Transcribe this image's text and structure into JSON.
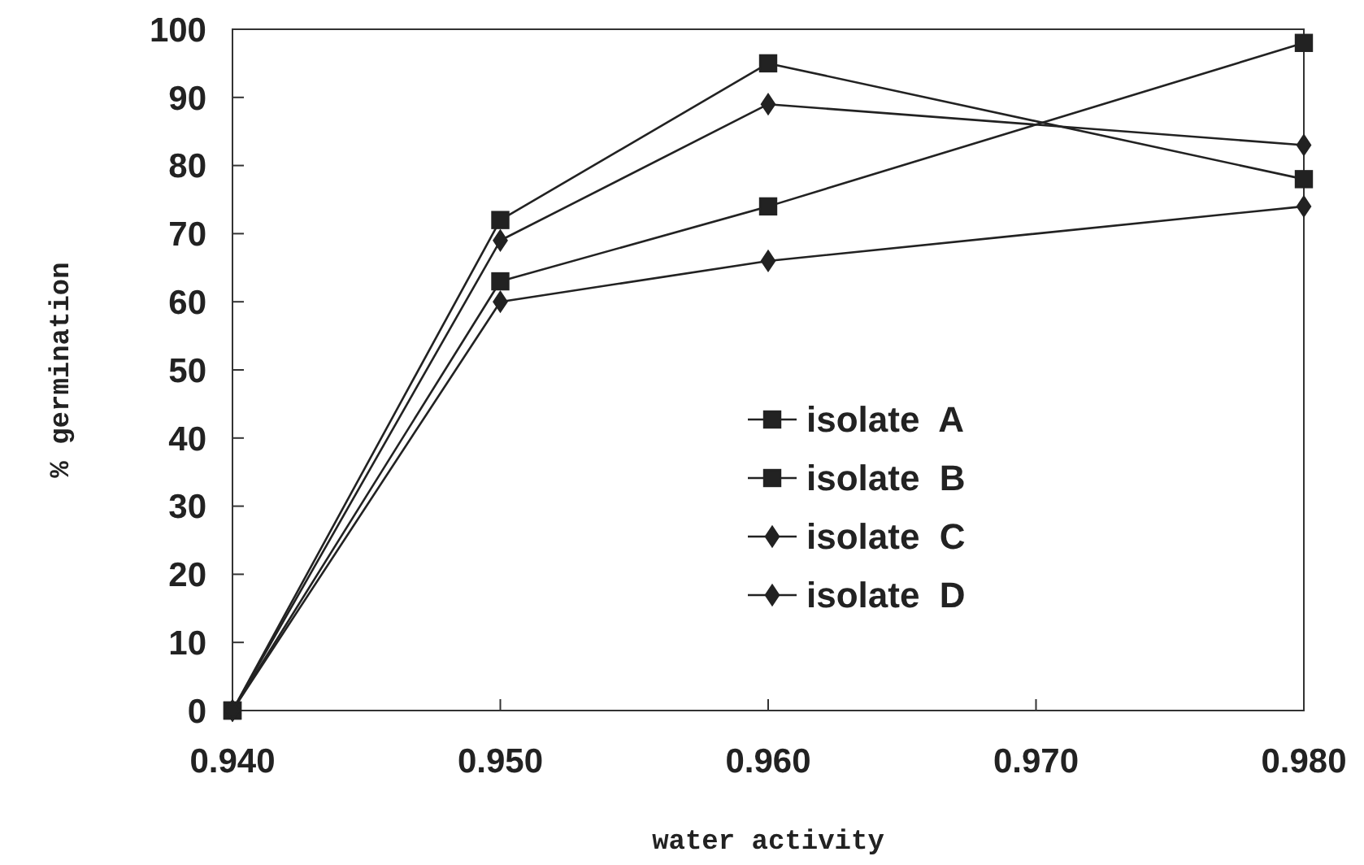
{
  "chart_data": {
    "type": "line",
    "xlabel": "water activity",
    "ylabel": "% germination",
    "x": [
      0.94,
      0.95,
      0.96,
      0.98
    ],
    "xlim": [
      0.94,
      0.98
    ],
    "xticks": [
      {
        "value": 0.94,
        "label": "0.940"
      },
      {
        "value": 0.95,
        "label": "0.950"
      },
      {
        "value": 0.96,
        "label": "0.960"
      },
      {
        "value": 0.97,
        "label": "0.970"
      },
      {
        "value": 0.98,
        "label": "0.980"
      }
    ],
    "ylim": [
      0,
      100
    ],
    "yticks": [
      0,
      10,
      20,
      30,
      40,
      50,
      60,
      70,
      80,
      90,
      100
    ],
    "grid": false,
    "legend": "center",
    "series": [
      {
        "name": "isolate  A",
        "color": "#222222",
        "marker": "square",
        "values": [
          0,
          72,
          95,
          78
        ]
      },
      {
        "name": "isolate  B",
        "color": "#222222",
        "marker": "square",
        "values": [
          0,
          63,
          74,
          98
        ]
      },
      {
        "name": "isolate  C",
        "color": "#222222",
        "marker": "diamond",
        "values": [
          0,
          69,
          89,
          83
        ]
      },
      {
        "name": "isolate  D",
        "color": "#222222",
        "marker": "diamond",
        "values": [
          0,
          60,
          66,
          74
        ]
      }
    ]
  }
}
